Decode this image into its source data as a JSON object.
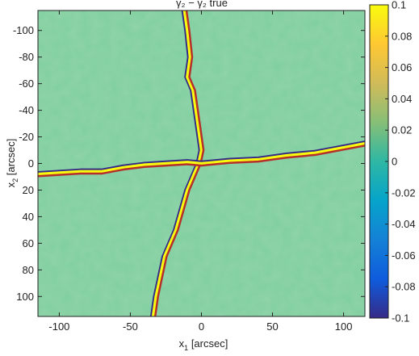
{
  "chart_data": {
    "type": "heatmap",
    "title": "γ₂ − γ₂ true",
    "xlabel": "x",
    "xlabel_sub": "1",
    "xlabel_unit": "[arcsec]",
    "ylabel": "x",
    "ylabel_sub": "2",
    "ylabel_unit": "[arcsec]",
    "xlim": [
      -115,
      115
    ],
    "ylim": [
      115,
      -115
    ],
    "x_ticks": [
      -100,
      -50,
      0,
      50,
      100
    ],
    "x_tick_labels": [
      "-100",
      "-50",
      "0",
      "50",
      "100"
    ],
    "y_ticks": [
      -100,
      -80,
      -60,
      -40,
      -20,
      0,
      20,
      40,
      60,
      80,
      100
    ],
    "y_tick_labels": [
      "-100",
      "-80",
      "-60",
      "-40",
      "-20",
      "0",
      "20",
      "40",
      "60",
      "80",
      "100"
    ],
    "colorbar": {
      "range": [
        -0.1,
        0.1
      ],
      "ticks": [
        0.1,
        0.08,
        0.06,
        0.04,
        0.02,
        0,
        -0.02,
        -0.04,
        -0.06,
        -0.08,
        -0.1
      ],
      "tick_labels": [
        "0.1",
        "0.08",
        "0.06",
        "0.04",
        "0.02",
        "0",
        "-0.02",
        "-0.04",
        "-0.06",
        "-0.08",
        "-0.1"
      ],
      "colormap": "parula",
      "stops": [
        "#352a87",
        "#0f5cdd",
        "#1481d6",
        "#06a4ca",
        "#2eb7a4",
        "#87bf77",
        "#d1bb59",
        "#fec832",
        "#f9fb0e"
      ]
    },
    "background_value": 0.0,
    "features": [
      {
        "name": "vertical-ridge",
        "x": [
          -12,
          -10,
          -8,
          -10,
          -6,
          -4,
          -2,
          0,
          -2,
          -6,
          -10,
          -14,
          -18,
          -22,
          -26,
          -28,
          -30,
          -32,
          -34
        ],
        "y": [
          -115,
          -100,
          -80,
          -65,
          -55,
          -40,
          -25,
          -10,
          0,
          10,
          20,
          35,
          50,
          60,
          70,
          80,
          90,
          100,
          115
        ]
      },
      {
        "name": "horizontal-ridge",
        "x": [
          -115,
          -100,
          -85,
          -70,
          -55,
          -40,
          -25,
          -10,
          0,
          20,
          40,
          60,
          80,
          90,
          100,
          115
        ],
        "y": [
          8,
          7,
          6,
          6,
          3,
          1,
          0,
          -1,
          0,
          -2,
          -3,
          -6,
          -8,
          -10,
          -12,
          -15
        ]
      }
    ]
  }
}
